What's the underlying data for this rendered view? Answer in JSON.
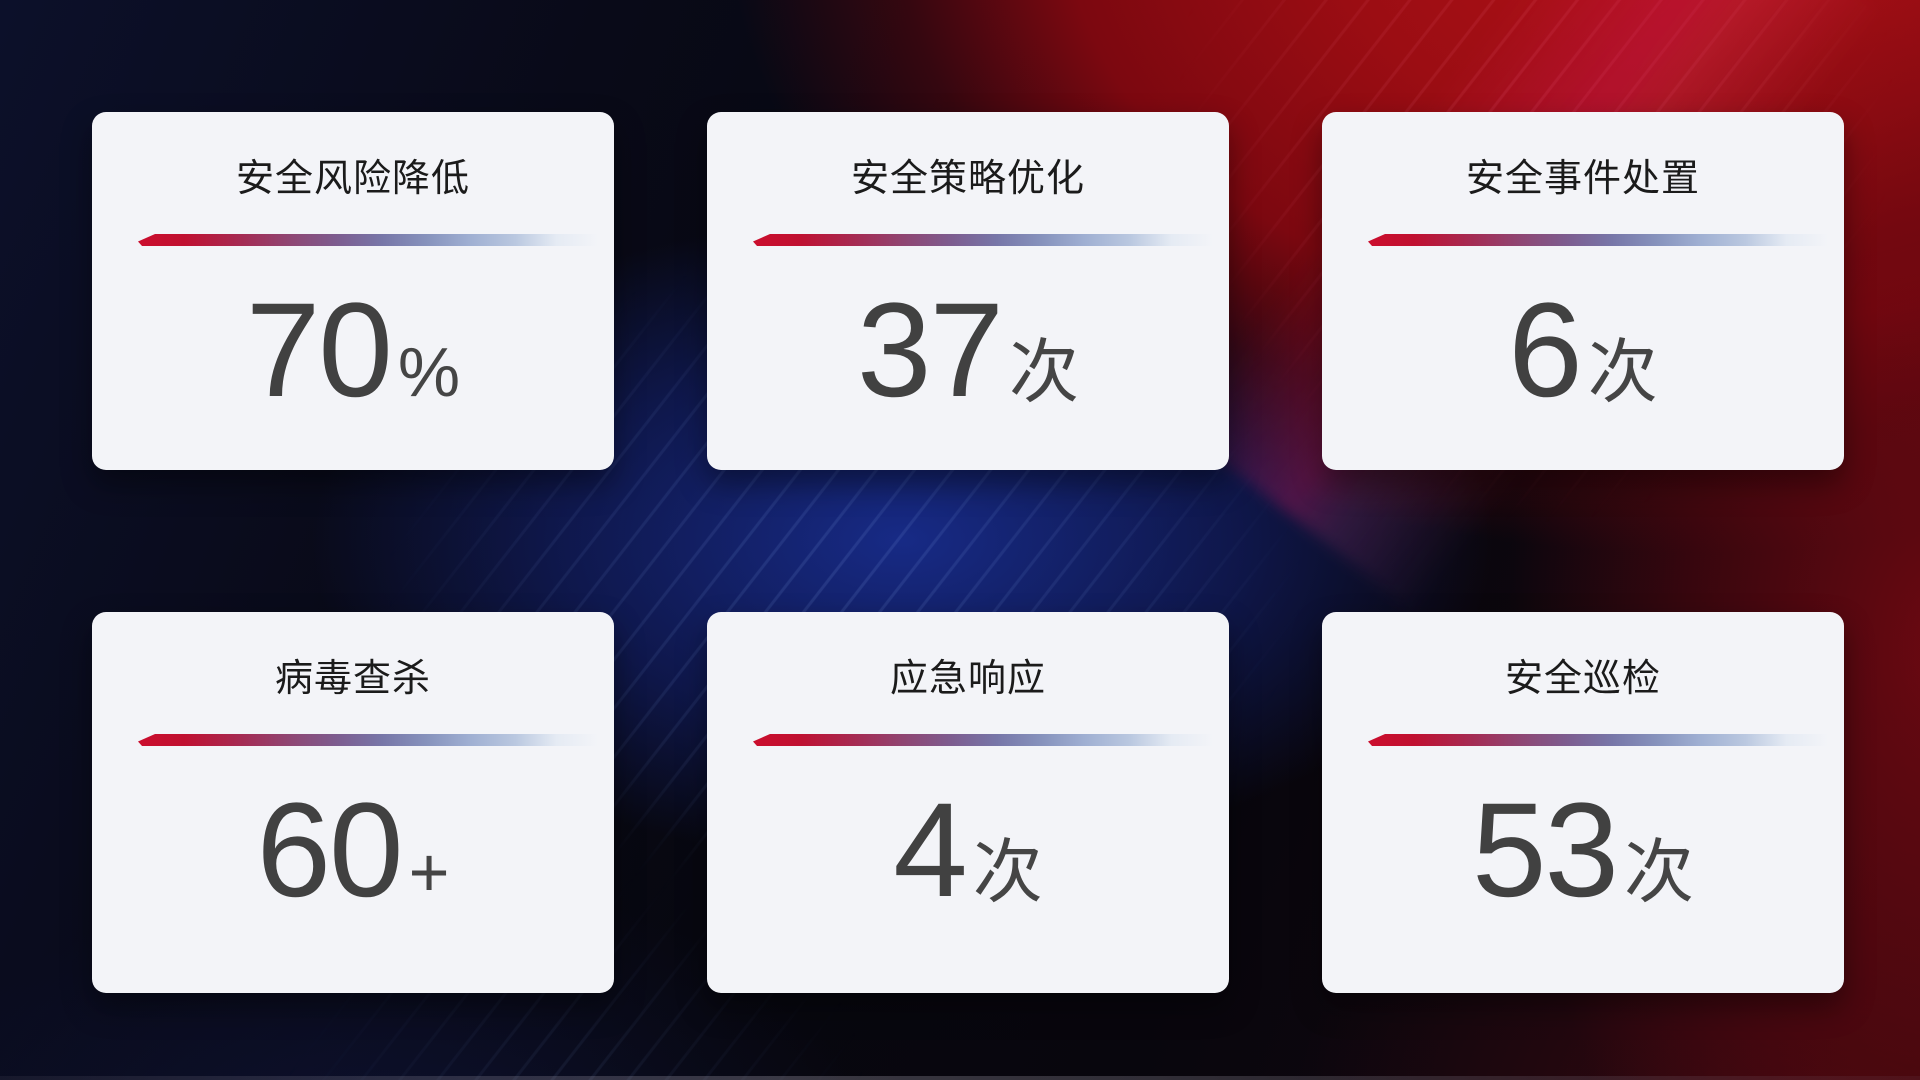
{
  "screen": {
    "description": "security operations stats dashboard",
    "colors": {
      "card_background": "#f3f4f8",
      "title_text": "#1b1b1b",
      "value_text": "#414141",
      "divider_gradient_start": "#cb0e2d",
      "divider_gradient_mid": "#7d5c8f",
      "divider_gradient_end": "#bac8e0",
      "background_red": "#9b0d13",
      "background_blue": "#182c8c",
      "background_dark": "#07070f"
    }
  },
  "cards": [
    {
      "title": "安全风险降低",
      "value": "70",
      "suffix": "%"
    },
    {
      "title": "安全策略优化",
      "value": "37",
      "suffix": "次"
    },
    {
      "title": "安全事件处置",
      "value": "6",
      "suffix": "次"
    },
    {
      "title": "病毒查杀",
      "value": "60",
      "suffix": "+"
    },
    {
      "title": "应急响应",
      "value": "4",
      "suffix": "次"
    },
    {
      "title": "安全巡检",
      "value": "53",
      "suffix": "次"
    }
  ]
}
